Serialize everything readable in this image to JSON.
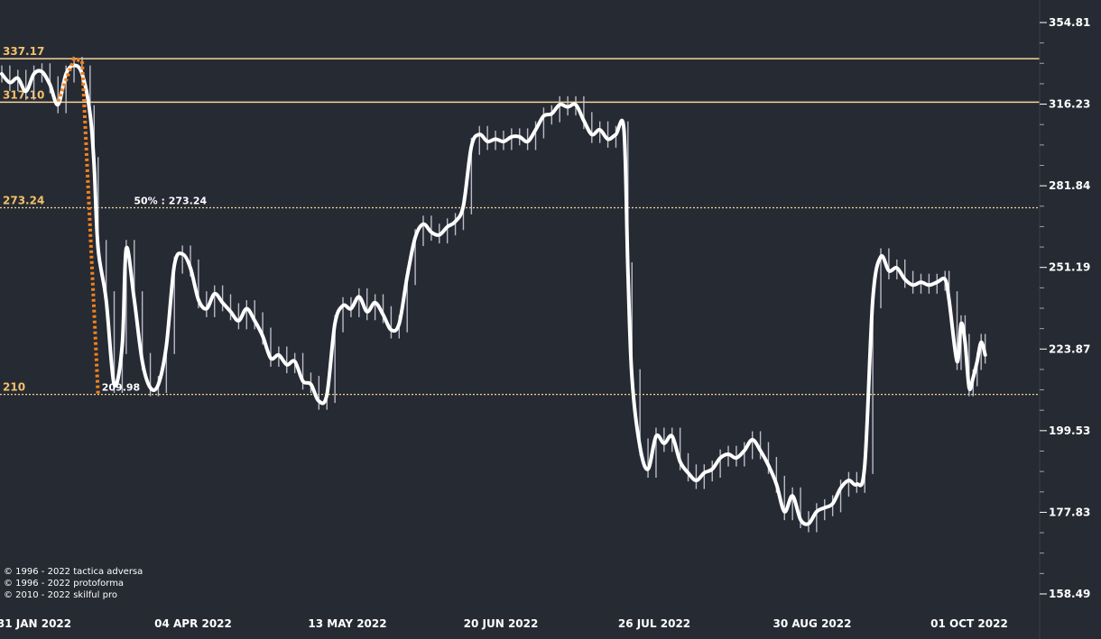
{
  "chart_data": {
    "type": "line",
    "title": "",
    "xlabel": "",
    "ylabel": "",
    "y_scale": "log",
    "ylim": [
      158.49,
      354.81
    ],
    "y_ticks": [
      "354.81",
      "316.23",
      "281.84",
      "251.19",
      "223.87",
      "199.53",
      "177.83",
      "158.49"
    ],
    "x_ticks": [
      "31 JAN 2022",
      "04 APR 2022",
      "13 MAY 2022",
      "20 JUN 2022",
      "26 JUL 2022",
      "30 AUG 2022",
      "01 OCT 2022"
    ],
    "x_range": [
      "2022-01-31",
      "2022-10-06"
    ],
    "grid": false,
    "colors": {
      "background": "#262a33",
      "price_line": "#ffffff",
      "price_bars": "#c9cbd6",
      "levels": "#f3c06a",
      "projection": "#f0821e"
    },
    "levels": [
      {
        "value": 337.17,
        "label": "337.17",
        "style": "solid"
      },
      {
        "value": 317.1,
        "label": "317.10",
        "style": "solid"
      },
      {
        "value": 273.24,
        "label": "273.24",
        "style": "dotted"
      },
      {
        "value": 210,
        "label": "210",
        "style": "dotted"
      }
    ],
    "annotations": [
      {
        "text": "50% : 273.24",
        "date": "2022-03-04",
        "value": 273.24
      },
      {
        "text": "209.98",
        "date": "2022-02-24",
        "value": 209.98
      }
    ],
    "projection": [
      {
        "date": "2022-02-14",
        "value": 317.5
      },
      {
        "date": "2022-02-18",
        "value": 337.17
      },
      {
        "date": "2022-02-20",
        "value": 336.0
      },
      {
        "date": "2022-02-24",
        "value": 209.98
      }
    ],
    "series": [
      {
        "points": [
          [
            "2022-01-31",
            330
          ],
          [
            "2022-02-02",
            326
          ],
          [
            "2022-02-04",
            328
          ],
          [
            "2022-02-06",
            322
          ],
          [
            "2022-02-08",
            330
          ],
          [
            "2022-02-10",
            331
          ],
          [
            "2022-02-12",
            325
          ],
          [
            "2022-02-14",
            316
          ],
          [
            "2022-02-16",
            330
          ],
          [
            "2022-02-18",
            334
          ],
          [
            "2022-02-20",
            330
          ],
          [
            "2022-02-22",
            312
          ],
          [
            "2022-02-23",
            290
          ],
          [
            "2022-02-24",
            258
          ],
          [
            "2022-02-26",
            240
          ],
          [
            "2022-02-28",
            213
          ],
          [
            "2022-03-02",
            225
          ],
          [
            "2022-03-03",
            258
          ],
          [
            "2022-03-05",
            240
          ],
          [
            "2022-03-07",
            220
          ],
          [
            "2022-03-09",
            212
          ],
          [
            "2022-03-11",
            213
          ],
          [
            "2022-03-13",
            225
          ],
          [
            "2022-03-15",
            252
          ],
          [
            "2022-03-17",
            256
          ],
          [
            "2022-03-19",
            251
          ],
          [
            "2022-03-21",
            240
          ],
          [
            "2022-03-23",
            237
          ],
          [
            "2022-03-25",
            242
          ],
          [
            "2022-03-27",
            239
          ],
          [
            "2022-03-29",
            236
          ],
          [
            "2022-03-31",
            233
          ],
          [
            "2022-04-02",
            237
          ],
          [
            "2022-04-04",
            233
          ],
          [
            "2022-04-06",
            228
          ],
          [
            "2022-04-08",
            221
          ],
          [
            "2022-04-10",
            222
          ],
          [
            "2022-04-12",
            219
          ],
          [
            "2022-04-14",
            220
          ],
          [
            "2022-04-16",
            214
          ],
          [
            "2022-04-18",
            213
          ],
          [
            "2022-04-20",
            208
          ],
          [
            "2022-04-22",
            210
          ],
          [
            "2022-04-24",
            232
          ],
          [
            "2022-04-26",
            238
          ],
          [
            "2022-04-28",
            237
          ],
          [
            "2022-04-30",
            241
          ],
          [
            "2022-05-02",
            236
          ],
          [
            "2022-05-04",
            239
          ],
          [
            "2022-05-06",
            235
          ],
          [
            "2022-05-08",
            230
          ],
          [
            "2022-05-10",
            232
          ],
          [
            "2022-05-12",
            248
          ],
          [
            "2022-05-14",
            262
          ],
          [
            "2022-05-16",
            267
          ],
          [
            "2022-05-18",
            264
          ],
          [
            "2022-05-20",
            263
          ],
          [
            "2022-05-22",
            266
          ],
          [
            "2022-05-24",
            268
          ],
          [
            "2022-05-26",
            274
          ],
          [
            "2022-05-28",
            298
          ],
          [
            "2022-05-30",
            303
          ],
          [
            "2022-06-01",
            300
          ],
          [
            "2022-06-03",
            301
          ],
          [
            "2022-06-05",
            300
          ],
          [
            "2022-06-07",
            302
          ],
          [
            "2022-06-09",
            302
          ],
          [
            "2022-06-11",
            300
          ],
          [
            "2022-06-13",
            305
          ],
          [
            "2022-06-15",
            311
          ],
          [
            "2022-06-17",
            312
          ],
          [
            "2022-06-19",
            316
          ],
          [
            "2022-06-21",
            315
          ],
          [
            "2022-06-23",
            316
          ],
          [
            "2022-06-25",
            309
          ],
          [
            "2022-06-27",
            303
          ],
          [
            "2022-06-29",
            305
          ],
          [
            "2022-07-01",
            301
          ],
          [
            "2022-07-03",
            303
          ],
          [
            "2022-07-05",
            305
          ],
          [
            "2022-07-06",
            250
          ],
          [
            "2022-07-07",
            215
          ],
          [
            "2022-07-09",
            195
          ],
          [
            "2022-07-11",
            189
          ],
          [
            "2022-07-13",
            198
          ],
          [
            "2022-07-15",
            196
          ],
          [
            "2022-07-17",
            198
          ],
          [
            "2022-07-19",
            191
          ],
          [
            "2022-07-21",
            188
          ],
          [
            "2022-07-23",
            186
          ],
          [
            "2022-07-25",
            188
          ],
          [
            "2022-07-27",
            189
          ],
          [
            "2022-07-29",
            192
          ],
          [
            "2022-07-31",
            193
          ],
          [
            "2022-08-02",
            192
          ],
          [
            "2022-08-04",
            194
          ],
          [
            "2022-08-06",
            197
          ],
          [
            "2022-08-08",
            194
          ],
          [
            "2022-08-10",
            190
          ],
          [
            "2022-08-12",
            185
          ],
          [
            "2022-08-14",
            178
          ],
          [
            "2022-08-16",
            182
          ],
          [
            "2022-08-18",
            176
          ],
          [
            "2022-08-20",
            175
          ],
          [
            "2022-08-22",
            178
          ],
          [
            "2022-08-24",
            179
          ],
          [
            "2022-08-26",
            180
          ],
          [
            "2022-08-28",
            184
          ],
          [
            "2022-08-30",
            186
          ],
          [
            "2022-09-01",
            185
          ],
          [
            "2022-09-03",
            190
          ],
          [
            "2022-09-05",
            240
          ],
          [
            "2022-09-07",
            255
          ],
          [
            "2022-09-09",
            250
          ],
          [
            "2022-09-11",
            251
          ],
          [
            "2022-09-13",
            247
          ],
          [
            "2022-09-15",
            245
          ],
          [
            "2022-09-17",
            246
          ],
          [
            "2022-09-19",
            245
          ],
          [
            "2022-09-21",
            246
          ],
          [
            "2022-09-23",
            247
          ],
          [
            "2022-09-24",
            240
          ],
          [
            "2022-09-26",
            220
          ],
          [
            "2022-09-27",
            232
          ],
          [
            "2022-09-28",
            226
          ],
          [
            "2022-09-29",
            212
          ],
          [
            "2022-09-30",
            215
          ],
          [
            "2022-10-01",
            220
          ],
          [
            "2022-10-02",
            226
          ],
          [
            "2022-10-03",
            222
          ]
        ]
      }
    ]
  },
  "copyright": [
    "© 1996 - 2022 tactica adversa",
    "© 1996 - 2022 protoforma",
    "© 2010 - 2022 skilful pro"
  ]
}
